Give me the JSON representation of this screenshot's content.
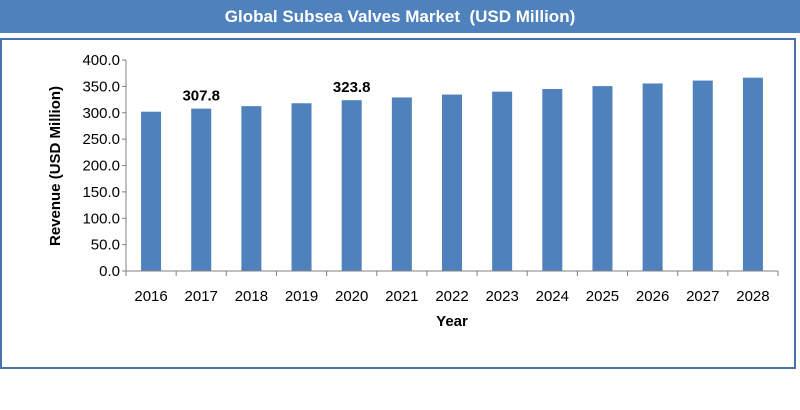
{
  "chart_data": {
    "type": "bar",
    "title": "Global Subsea Valves Market  (USD Million)",
    "xlabel": "Year",
    "ylabel": "Revenue (USD Million)",
    "categories": [
      "2016",
      "2017",
      "2018",
      "2019",
      "2020",
      "2021",
      "2022",
      "2023",
      "2024",
      "2025",
      "2026",
      "2027",
      "2028"
    ],
    "values": [
      302.0,
      307.8,
      312.5,
      318.0,
      323.8,
      329.0,
      334.5,
      340.0,
      345.0,
      350.5,
      355.5,
      361.0,
      366.5
    ],
    "ylim": [
      0,
      400
    ],
    "ytick_labels": [
      "0.0",
      "50.0",
      "100.0",
      "150.0",
      "200.0",
      "250.0",
      "300.0",
      "350.0",
      "400.0"
    ],
    "data_labels": [
      {
        "category": "2017",
        "text": "307.8"
      },
      {
        "category": "2020",
        "text": "323.8"
      }
    ],
    "grid": false,
    "legend": "none",
    "colors": {
      "bar": "#4f81bd",
      "title_bg": "#4f81bd",
      "frame": "#4a72a8"
    }
  }
}
